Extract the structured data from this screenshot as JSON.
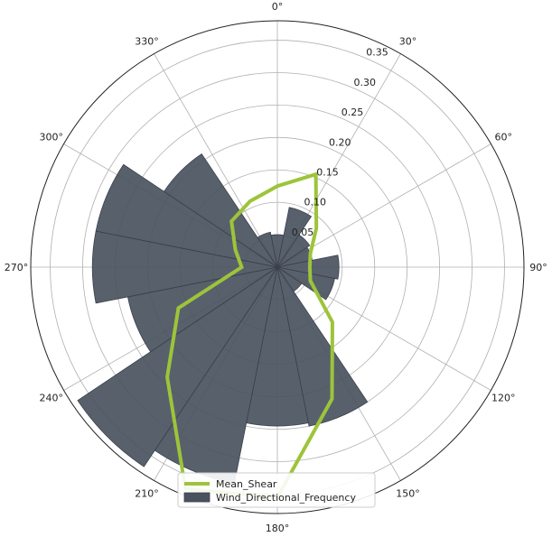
{
  "chart_data": {
    "type": "polar-bar-line",
    "direction": "clockwise",
    "zero_location": "top",
    "rlim": [
      0,
      0.38
    ],
    "r_ticks": [
      0.05,
      0.1,
      0.15,
      0.2,
      0.25,
      0.3,
      0.35
    ],
    "r_tick_labels": [
      "0.05",
      "0.10",
      "0.15",
      "0.20",
      "0.25",
      "0.30",
      "0.35"
    ],
    "theta_ticks": [
      0,
      30,
      60,
      90,
      120,
      150,
      180,
      210,
      240,
      270,
      300,
      330
    ],
    "theta_tick_labels": [
      "0°",
      "30°",
      "60°",
      "90°",
      "120°",
      "150°",
      "180°",
      "210°",
      "240°",
      "270°",
      "300°",
      "330°"
    ],
    "grid": true,
    "legend_position": "bottom-center",
    "series": [
      {
        "name": "Wind_Directional_Frequency",
        "kind": "bar",
        "color": "#4a5260",
        "bar_width_deg": 22.5,
        "directions_deg": [
          0,
          22.5,
          45,
          67.5,
          90,
          112.5,
          135,
          157.5,
          180,
          202.5,
          225,
          247.5,
          270,
          292.5,
          315,
          337.5
        ],
        "values": [
          0.05,
          0.094,
          0.06,
          0.055,
          0.095,
          0.09,
          0.045,
          0.25,
          0.245,
          0.34,
          0.37,
          0.235,
          0.285,
          0.285,
          0.21,
          0.055
        ]
      },
      {
        "name": "Mean_Shear",
        "kind": "line",
        "color": "#9dc43a",
        "directions_deg": [
          0,
          22.5,
          45,
          67.5,
          90,
          112.5,
          135,
          157.5,
          180,
          202.5,
          225,
          247.5,
          270,
          292.5,
          315,
          337.5
        ],
        "values": [
          0.125,
          0.155,
          0.085,
          0.055,
          0.05,
          0.055,
          0.12,
          0.22,
          0.355,
          0.37,
          0.24,
          0.165,
          0.055,
          0.07,
          0.1,
          0.11
        ]
      }
    ]
  }
}
